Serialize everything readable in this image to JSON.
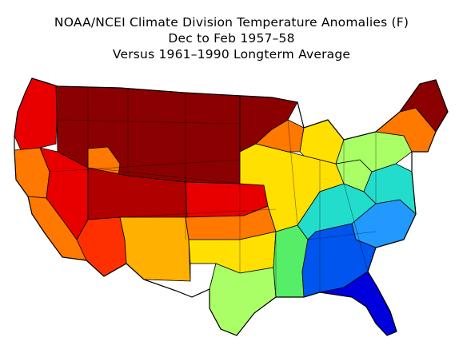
{
  "title": {
    "line1": "NOAA/NCEI Climate Division Temperature Anomalies (F)",
    "line2": "Dec to Feb 1957–58",
    "line3": "Versus 1961–1990 Longterm Average"
  },
  "colors": {
    "dark_red": "#8b0000",
    "red_brown": "#b00000",
    "red": "#e80000",
    "red_orange": "#ff3000",
    "orange": "#ff7800",
    "orange_yellow": "#ffb000",
    "yellow": "#ffe000",
    "white": "#ffffff",
    "light_green": "#aaff66",
    "green": "#55ee66",
    "cyan": "#22ddcc",
    "sky_blue": "#2299ff",
    "blue": "#0055ee",
    "deep_blue": "#0000dd",
    "border": "#000000"
  },
  "regions": [
    {
      "id": "pacific-northwest",
      "color": "red"
    },
    {
      "id": "northern-rockies-plains",
      "color": "dark_red"
    },
    {
      "id": "upper-midwest",
      "color": "dark_red"
    },
    {
      "id": "northern-california",
      "color": "orange"
    },
    {
      "id": "southern-california",
      "color": "orange"
    },
    {
      "id": "great-basin",
      "color": "red"
    },
    {
      "id": "idaho-snake",
      "color": "orange"
    },
    {
      "id": "colorado-utah",
      "color": "red_brown"
    },
    {
      "id": "arizona",
      "color": "red_orange"
    },
    {
      "id": "new-mexico",
      "color": "orange_yellow"
    },
    {
      "id": "central-plains",
      "color": "red"
    },
    {
      "id": "southern-plains",
      "color": "orange"
    },
    {
      "id": "north-texas",
      "color": "yellow"
    },
    {
      "id": "west-texas",
      "color": "white"
    },
    {
      "id": "gulf-coast-texas",
      "color": "light_green"
    },
    {
      "id": "lower-mississippi",
      "color": "green"
    },
    {
      "id": "ohio-valley",
      "color": "yellow"
    },
    {
      "id": "great-lakes",
      "color": "orange"
    },
    {
      "id": "michigan",
      "color": "yellow"
    },
    {
      "id": "appalachia",
      "color": "light_green"
    },
    {
      "id": "tennessee",
      "color": "cyan"
    },
    {
      "id": "carolinas",
      "color": "sky_blue"
    },
    {
      "id": "georgia-alabama",
      "color": "blue"
    },
    {
      "id": "florida",
      "color": "deep_blue"
    },
    {
      "id": "mid-atlantic",
      "color": "cyan"
    },
    {
      "id": "new-york",
      "color": "light_green"
    },
    {
      "id": "new-england-south",
      "color": "orange"
    },
    {
      "id": "maine",
      "color": "dark_red"
    }
  ]
}
